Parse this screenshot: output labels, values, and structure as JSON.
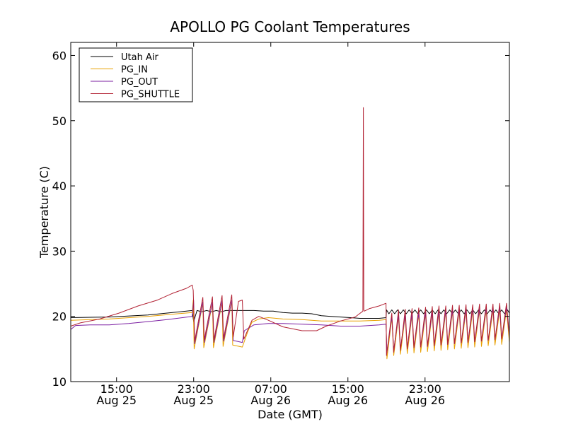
{
  "chart_data": {
    "type": "line",
    "title": "APOLLO PG Coolant Temperatures",
    "xlabel": "Date (GMT)",
    "ylabel": "Temperature (C)",
    "xlim": [
      0,
      45.5
    ],
    "ylim": [
      10,
      62
    ],
    "x_unit": "hours since Aug 25 10:15 GMT",
    "yticks": [
      10,
      20,
      30,
      40,
      50,
      60
    ],
    "xticks": [
      {
        "x": 4.75,
        "time": "15:00",
        "date": "Aug 25"
      },
      {
        "x": 12.75,
        "time": "23:00",
        "date": "Aug 25"
      },
      {
        "x": 20.75,
        "time": "07:00",
        "date": "Aug 26"
      },
      {
        "x": 28.75,
        "time": "15:00",
        "date": "Aug 26"
      },
      {
        "x": 36.75,
        "time": "23:00",
        "date": "Aug 26"
      }
    ],
    "legend_position": "top-left",
    "series": [
      {
        "name": "Utah Air",
        "color": "#000000",
        "x": [
          0,
          4,
          8,
          12.6,
          12.75,
          13.1,
          13.6,
          14.1,
          14.6,
          15.1,
          15.6,
          16.1,
          17,
          18,
          19,
          20,
          21,
          22,
          23,
          24,
          25,
          26,
          27,
          28,
          29,
          30,
          31,
          32,
          32.7,
          32.75,
          33.0,
          33.3,
          33.6,
          33.9,
          34.2,
          34.5,
          34.8,
          35.1,
          35.4,
          35.7,
          36.0,
          36.3,
          36.6,
          36.9,
          37.2,
          37.5,
          37.8,
          38.1,
          38.4,
          38.7,
          39.0,
          39.3,
          39.6,
          39.9,
          40.2,
          40.5,
          40.8,
          41.1,
          41.4,
          41.7,
          42.0,
          42.3,
          42.6,
          42.9,
          43.2,
          43.5,
          43.8,
          44.1,
          44.4,
          44.7,
          45.0,
          45.3,
          45.5
        ],
        "y": [
          19.8,
          19.9,
          20.2,
          20.9,
          19.2,
          20.9,
          20.7,
          20.9,
          20.7,
          20.9,
          20.7,
          20.9,
          20.9,
          20.9,
          20.9,
          20.8,
          20.8,
          20.6,
          20.5,
          20.5,
          20.4,
          20.1,
          20.0,
          19.9,
          19.8,
          19.7,
          19.7,
          19.7,
          19.8,
          21.0,
          20.4,
          21.0,
          20.4,
          21.0,
          20.4,
          21.0,
          20.4,
          21.0,
          20.4,
          21.0,
          20.4,
          21.0,
          20.4,
          21.0,
          20.4,
          21.0,
          20.4,
          21.0,
          20.4,
          21.0,
          20.4,
          21.0,
          20.4,
          21.0,
          20.4,
          21.0,
          20.4,
          21.0,
          20.4,
          21.0,
          20.4,
          21.0,
          20.4,
          21.0,
          20.4,
          21.0,
          20.4,
          21.0,
          20.4,
          21.0,
          20.4,
          21.0,
          20.5
        ]
      },
      {
        "name": "PG_IN",
        "color": "#e8a000",
        "x": [
          0,
          4,
          8,
          12.6,
          12.7,
          12.8,
          13.7,
          13.8,
          14.7,
          14.8,
          15.7,
          15.8,
          16.7,
          16.8,
          17.8,
          18.4,
          18.8,
          19.5,
          20.5,
          22,
          24,
          26,
          28,
          30,
          32,
          32.7,
          32.8,
          33.3,
          33.5,
          34.0,
          34.2,
          34.7,
          34.9,
          35.4,
          35.6,
          36.1,
          36.3,
          36.8,
          37.0,
          37.5,
          37.7,
          38.2,
          38.4,
          38.9,
          39.1,
          39.6,
          39.8,
          40.3,
          40.5,
          41.0,
          41.2,
          41.7,
          41.9,
          42.4,
          42.6,
          43.1,
          43.3,
          43.8,
          44.0,
          44.5,
          44.7,
          45.2,
          45.5
        ],
        "y": [
          19.4,
          19.6,
          20.0,
          20.6,
          22.5,
          15.0,
          22.0,
          15.2,
          22.0,
          15.2,
          22.2,
          15.4,
          22.3,
          15.6,
          15.3,
          17.8,
          19.1,
          19.6,
          19.8,
          19.6,
          19.5,
          19.3,
          19.3,
          19.3,
          19.4,
          19.5,
          13.5,
          19.8,
          14.0,
          20.0,
          14.2,
          20.1,
          14.3,
          20.2,
          14.4,
          20.3,
          14.5,
          20.4,
          14.6,
          20.5,
          14.7,
          20.6,
          14.8,
          20.7,
          14.9,
          20.8,
          15.0,
          20.8,
          15.1,
          20.9,
          15.2,
          20.9,
          15.3,
          21.0,
          15.4,
          21.0,
          15.5,
          21.0,
          15.6,
          21.0,
          15.7,
          21.0,
          16.0
        ]
      },
      {
        "name": "PG_OUT",
        "color": "#7b1fa2",
        "x": [
          0,
          0.5,
          2,
          4,
          6,
          8,
          10,
          12.6,
          12.75,
          12.85,
          13.7,
          13.85,
          14.7,
          14.85,
          15.7,
          15.85,
          16.7,
          16.85,
          17.8,
          18.0,
          19.0,
          20.5,
          22,
          24,
          26,
          28,
          30,
          32,
          32.7,
          32.8,
          33.3,
          33.5,
          34.0,
          34.2,
          34.7,
          34.9,
          35.4,
          35.6,
          36.1,
          36.3,
          36.8,
          37.0,
          37.5,
          37.7,
          38.2,
          38.4,
          38.9,
          39.1,
          39.6,
          39.8,
          40.3,
          40.5,
          41.0,
          41.2,
          41.7,
          41.9,
          42.4,
          42.6,
          43.1,
          43.3,
          43.8,
          44.0,
          44.5,
          44.7,
          45.2,
          45.5
        ],
        "y": [
          18.0,
          18.6,
          18.7,
          18.7,
          18.9,
          19.2,
          19.5,
          20.0,
          22.5,
          15.8,
          22.2,
          16.0,
          22.2,
          16.0,
          22.4,
          16.2,
          22.5,
          16.3,
          16.0,
          17.8,
          18.7,
          18.9,
          18.9,
          18.8,
          18.7,
          18.5,
          18.5,
          18.7,
          18.8,
          14.5,
          20.0,
          14.8,
          20.2,
          15.0,
          20.3,
          15.1,
          20.4,
          15.2,
          20.5,
          15.3,
          20.6,
          15.4,
          20.7,
          15.5,
          20.8,
          15.6,
          20.9,
          15.7,
          21.0,
          15.8,
          21.1,
          15.9,
          21.1,
          16.0,
          21.2,
          16.1,
          21.2,
          16.2,
          21.3,
          16.3,
          21.3,
          16.4,
          21.4,
          16.5,
          21.4,
          17.0
        ]
      },
      {
        "name": "PG_SHUTTLE",
        "color": "#b22234",
        "x": [
          0,
          1,
          3,
          5,
          7,
          9,
          10.5,
          12.0,
          12.6,
          12.7,
          12.85,
          13.7,
          13.85,
          14.7,
          14.85,
          15.7,
          15.85,
          16.7,
          16.85,
          17.4,
          17.8,
          17.95,
          18.8,
          19.5,
          20.5,
          22,
          24,
          25.5,
          26.5,
          28.0,
          29.5,
          30.3,
          30.35,
          30.4,
          30.45,
          31.0,
          32.0,
          32.7,
          32.75,
          33.3,
          33.5,
          34.0,
          34.2,
          34.7,
          34.9,
          35.4,
          35.6,
          36.1,
          36.3,
          36.8,
          37.0,
          37.5,
          37.7,
          38.2,
          38.4,
          38.9,
          39.1,
          39.6,
          39.8,
          40.3,
          40.5,
          41.0,
          41.2,
          41.7,
          41.9,
          42.4,
          42.6,
          43.1,
          43.3,
          43.8,
          44.0,
          44.5,
          44.7,
          45.2,
          45.5
        ],
        "y": [
          18.5,
          19.0,
          19.6,
          20.5,
          21.6,
          22.5,
          23.5,
          24.3,
          24.8,
          24.0,
          16.2,
          22.9,
          16.4,
          23.0,
          16.4,
          23.2,
          16.6,
          23.3,
          16.8,
          22.3,
          22.5,
          16.5,
          19.4,
          20.0,
          19.4,
          18.4,
          17.8,
          17.8,
          18.5,
          19.3,
          19.9,
          20.8,
          52.0,
          21.0,
          20.8,
          21.2,
          21.6,
          22.0,
          14.0,
          20.5,
          14.5,
          21.0,
          14.8,
          21.1,
          15.0,
          21.2,
          15.2,
          21.3,
          15.3,
          21.4,
          15.4,
          21.5,
          15.5,
          21.6,
          15.6,
          21.6,
          15.7,
          21.7,
          15.8,
          21.7,
          15.9,
          21.8,
          16.0,
          21.8,
          16.1,
          21.9,
          16.2,
          21.9,
          16.3,
          21.9,
          16.4,
          22.0,
          16.5,
          22.0,
          17.0
        ]
      }
    ]
  }
}
